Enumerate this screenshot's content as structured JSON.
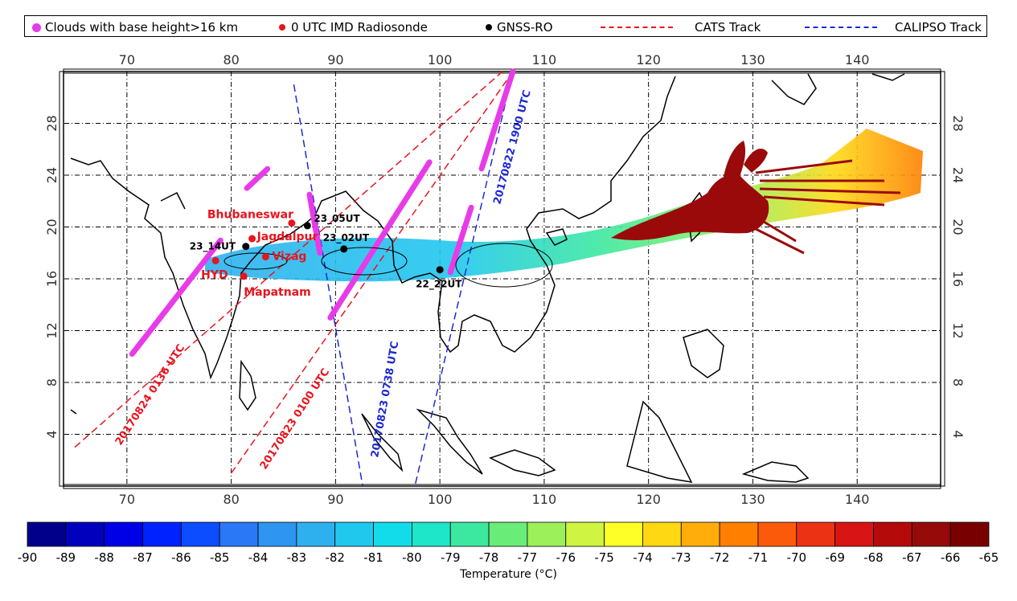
{
  "legend": [
    {
      "label": "Clouds with base height>16 km",
      "marker": "dot",
      "color": "#e83be8"
    },
    {
      "label": "0 UTC IMD Radiosonde",
      "marker": "dot",
      "color": "#e8141e"
    },
    {
      "label": "GNSS-RO",
      "marker": "dot",
      "color": "#000000"
    },
    {
      "label": "CATS Track",
      "marker": "dash",
      "color": "#e8141e"
    },
    {
      "label": "CALIPSO Track",
      "marker": "dash",
      "color": "#1e28d2"
    }
  ],
  "axes": {
    "lon_ticks": [
      "70",
      "80",
      "90",
      "100",
      "110",
      "120",
      "130",
      "140"
    ],
    "lat_ticks": [
      "4",
      "8",
      "12",
      "16",
      "20",
      "24",
      "28"
    ],
    "lon_range": [
      64,
      148
    ],
    "lat_range": [
      0,
      32
    ],
    "grid": true
  },
  "stations": [
    {
      "name": "Bhubaneswar",
      "lon": 85.8,
      "lat": 20.3
    },
    {
      "name": "Jagdalpur",
      "lon": 82.0,
      "lat": 19.1
    },
    {
      "name": "Vizag",
      "lon": 83.3,
      "lat": 17.7
    },
    {
      "name": "HYD",
      "lon": 78.5,
      "lat": 17.4
    },
    {
      "name": "Mapatnam",
      "lon": 81.2,
      "lat": 16.2
    }
  ],
  "gnss_points": [
    {
      "label": "23_05UT",
      "lon": 87.3,
      "lat": 20.1
    },
    {
      "label": "23_02UT",
      "lon": 90.8,
      "lat": 18.3
    },
    {
      "label": "23_14UT",
      "lon": 81.4,
      "lat": 18.5
    },
    {
      "label": "22_22UT",
      "lon": 100.0,
      "lat": 16.7
    }
  ],
  "tracks": [
    {
      "label": "20170824 0136 UTC",
      "type": "CATS",
      "color": "#e8141e"
    },
    {
      "label": "20170823 0100 UTC",
      "type": "CATS",
      "color": "#e8141e"
    },
    {
      "label": "20170823 0738 UTC",
      "type": "CALIPSO",
      "color": "#1e28d2"
    },
    {
      "label": "20170822 1900 UTC",
      "type": "CALIPSO",
      "color": "#1e28d2"
    }
  ],
  "colorbar": {
    "title": "Temperature (°C)",
    "labels": [
      "-90",
      "-89",
      "-88",
      "-87",
      "-86",
      "-85",
      "-84",
      "-83",
      "-82",
      "-81",
      "-80",
      "-79",
      "-78",
      "-77",
      "-76",
      "-75",
      "-74",
      "-73",
      "-72",
      "-71",
      "-70",
      "-69",
      "-68",
      "-67",
      "-66",
      "-65"
    ],
    "colors": [
      "#00008b",
      "#0000bd",
      "#0000e6",
      "#0022ff",
      "#0b4dff",
      "#2a78f5",
      "#2e95f0",
      "#2fb0ee",
      "#20c8ee",
      "#12dcea",
      "#1ee6c8",
      "#3ce8a0",
      "#6aec78",
      "#9cf05a",
      "#cff542",
      "#ffff28",
      "#ffd814",
      "#ffad0a",
      "#ff8000",
      "#fa5a0a",
      "#ec3214",
      "#d81414",
      "#b40a0a",
      "#960a0a",
      "#780000"
    ]
  },
  "chart_data": {
    "type": "map",
    "lon_range": [
      64,
      148
    ],
    "lat_range": [
      0,
      32
    ],
    "cats_tracks": [
      {
        "name": "20170824 0136 UTC",
        "points": [
          [
            65,
            3
          ],
          [
            106,
            32
          ]
        ]
      },
      {
        "name": "20170823 0100 UTC",
        "points": [
          [
            80,
            1
          ],
          [
            107,
            32
          ]
        ]
      }
    ],
    "calipso_tracks": [
      {
        "name": "20170823 0738 UTC",
        "points": [
          [
            86,
            31
          ],
          [
            92.6,
            0
          ]
        ]
      },
      {
        "name": "20170822 1900 UTC",
        "points": [
          [
            107,
            32
          ],
          [
            97.6,
            0
          ]
        ]
      }
    ],
    "clouds_segments": [
      [
        [
          70.5,
          10.2
        ],
        [
          79,
          19
        ]
      ],
      [
        [
          81.5,
          23
        ],
        [
          83.5,
          24.5
        ]
      ],
      [
        [
          87.5,
          22.5
        ],
        [
          88.5,
          18
        ]
      ],
      [
        [
          89.5,
          13
        ],
        [
          99,
          25
        ]
      ],
      [
        [
          101,
          16.5
        ],
        [
          103,
          21.5
        ]
      ],
      [
        [
          104,
          24.5
        ],
        [
          107,
          32
        ]
      ]
    ]
  }
}
